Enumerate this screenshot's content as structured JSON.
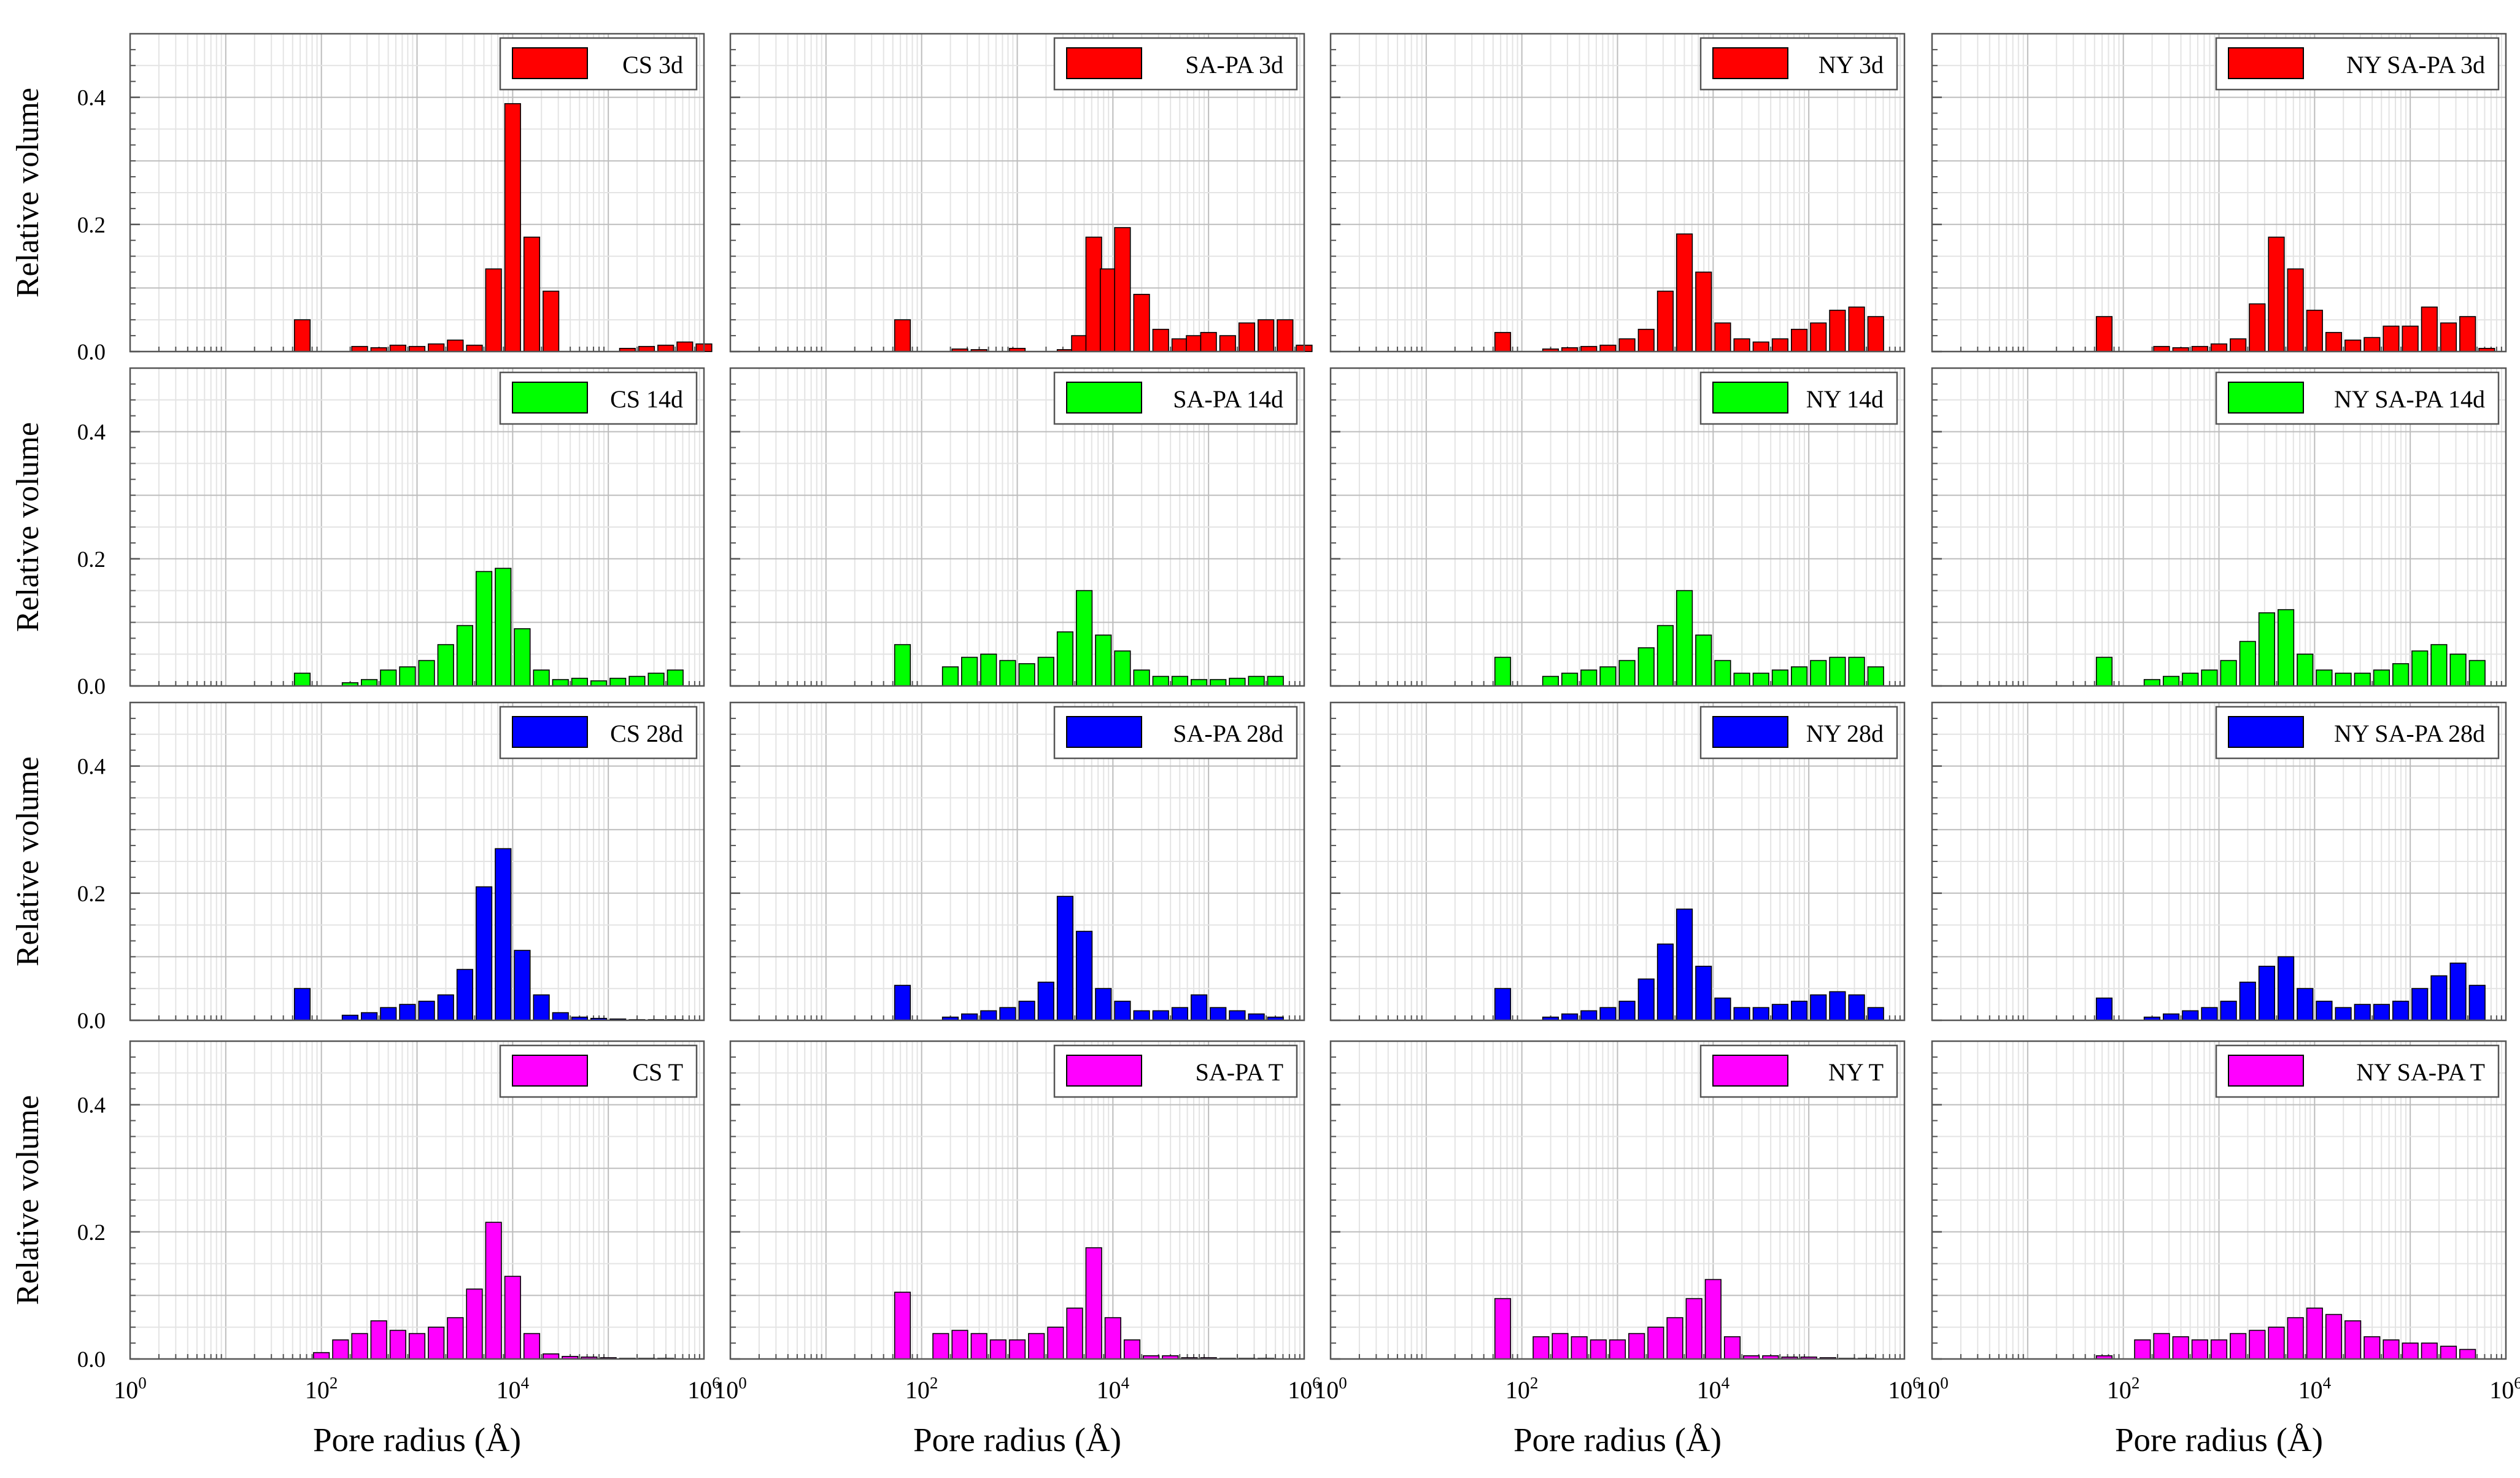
{
  "figure": {
    "ylabel": "Relative volume",
    "xlabel": "Pore radius (Å)",
    "xticks": [
      {
        "base": "10",
        "exp": "0"
      },
      {
        "base": "10",
        "exp": "2"
      },
      {
        "base": "10",
        "exp": "4"
      },
      {
        "base": "10",
        "exp": "6"
      }
    ],
    "yticks": [
      "0.0",
      "0.2",
      "0.4"
    ],
    "colors": {
      "3d": "#ff0000",
      "14d": "#00ff00",
      "28d": "#0000ff",
      "T": "#ff00ff"
    }
  },
  "chart_data": [
    {
      "type": "bar",
      "legend": "CS 3d",
      "color": "#ff0000",
      "xscale": "log",
      "xlim": [
        1,
        1000000
      ],
      "ylim": [
        0,
        0.5
      ],
      "log10_x": [
        1.8,
        2.4,
        2.6,
        2.8,
        3.0,
        3.2,
        3.4,
        3.6,
        3.8,
        4.0,
        4.2,
        4.4,
        5.2,
        5.4,
        5.6,
        5.8,
        6.0
      ],
      "values": [
        0.05,
        0.008,
        0.006,
        0.01,
        0.008,
        0.012,
        0.018,
        0.01,
        0.13,
        0.39,
        0.18,
        0.095,
        0.005,
        0.008,
        0.01,
        0.015,
        0.012
      ]
    },
    {
      "type": "bar",
      "legend": "SA-PA 3d",
      "color": "#ff0000",
      "xscale": "log",
      "xlim": [
        1,
        1000000
      ],
      "ylim": [
        0,
        0.5
      ],
      "log10_x": [
        1.8,
        2.4,
        2.6,
        3.0,
        3.5,
        3.65,
        3.8,
        3.95,
        4.1,
        4.3,
        4.5,
        4.7,
        4.85,
        5.0,
        5.2,
        5.4,
        5.6,
        5.8,
        6.0
      ],
      "values": [
        0.05,
        0.004,
        0.003,
        0.005,
        0.003,
        0.025,
        0.18,
        0.13,
        0.195,
        0.09,
        0.035,
        0.02,
        0.025,
        0.03,
        0.025,
        0.045,
        0.05,
        0.05,
        0.01
      ]
    },
    {
      "type": "bar",
      "legend": "NY 3d",
      "color": "#ff0000",
      "xscale": "log",
      "xlim": [
        1,
        1000000
      ],
      "ylim": [
        0,
        0.5
      ],
      "log10_x": [
        1.8,
        2.3,
        2.5,
        2.7,
        2.9,
        3.1,
        3.3,
        3.5,
        3.7,
        3.9,
        4.1,
        4.3,
        4.5,
        4.7,
        4.9,
        5.1,
        5.3,
        5.5,
        5.7
      ],
      "values": [
        0.03,
        0.004,
        0.006,
        0.008,
        0.01,
        0.02,
        0.035,
        0.095,
        0.185,
        0.125,
        0.045,
        0.02,
        0.015,
        0.02,
        0.035,
        0.045,
        0.065,
        0.07,
        0.055
      ]
    },
    {
      "type": "bar",
      "legend": "NY SA-PA 3d",
      "color": "#ff0000",
      "xscale": "log",
      "xlim": [
        1,
        1000000
      ],
      "ylim": [
        0,
        0.5
      ],
      "log10_x": [
        1.8,
        2.4,
        2.6,
        2.8,
        3.0,
        3.2,
        3.4,
        3.6,
        3.8,
        4.0,
        4.2,
        4.4,
        4.6,
        4.8,
        5.0,
        5.2,
        5.4,
        5.6,
        5.8
      ],
      "values": [
        0.055,
        0.008,
        0.006,
        0.008,
        0.012,
        0.02,
        0.075,
        0.18,
        0.13,
        0.065,
        0.03,
        0.018,
        0.022,
        0.04,
        0.04,
        0.07,
        0.045,
        0.055,
        0.005
      ]
    },
    {
      "type": "bar",
      "legend": "CS 14d",
      "color": "#00ff00",
      "xscale": "log",
      "xlim": [
        1,
        1000000
      ],
      "ylim": [
        0,
        0.5
      ],
      "log10_x": [
        1.8,
        2.3,
        2.5,
        2.7,
        2.9,
        3.1,
        3.3,
        3.5,
        3.7,
        3.9,
        4.1,
        4.3,
        4.5,
        4.7,
        4.9,
        5.1,
        5.3,
        5.5,
        5.7
      ],
      "values": [
        0.02,
        0.005,
        0.01,
        0.025,
        0.03,
        0.04,
        0.065,
        0.095,
        0.18,
        0.185,
        0.09,
        0.025,
        0.01,
        0.012,
        0.008,
        0.012,
        0.015,
        0.02,
        0.025
      ]
    },
    {
      "type": "bar",
      "legend": "SA-PA 14d",
      "color": "#00ff00",
      "xscale": "log",
      "xlim": [
        1,
        1000000
      ],
      "ylim": [
        0,
        0.5
      ],
      "log10_x": [
        1.8,
        2.3,
        2.5,
        2.7,
        2.9,
        3.1,
        3.3,
        3.5,
        3.7,
        3.9,
        4.1,
        4.3,
        4.5,
        4.7,
        4.9,
        5.1,
        5.3,
        5.5,
        5.7
      ],
      "values": [
        0.065,
        0.03,
        0.045,
        0.05,
        0.04,
        0.035,
        0.045,
        0.085,
        0.15,
        0.08,
        0.055,
        0.025,
        0.015,
        0.015,
        0.01,
        0.01,
        0.012,
        0.015,
        0.015
      ]
    },
    {
      "type": "bar",
      "legend": "NY 14d",
      "color": "#00ff00",
      "xscale": "log",
      "xlim": [
        1,
        1000000
      ],
      "ylim": [
        0,
        0.5
      ],
      "log10_x": [
        1.8,
        2.3,
        2.5,
        2.7,
        2.9,
        3.1,
        3.3,
        3.5,
        3.7,
        3.9,
        4.1,
        4.3,
        4.5,
        4.7,
        4.9,
        5.1,
        5.3,
        5.5,
        5.7
      ],
      "values": [
        0.045,
        0.015,
        0.02,
        0.025,
        0.03,
        0.04,
        0.06,
        0.095,
        0.15,
        0.08,
        0.04,
        0.02,
        0.02,
        0.025,
        0.03,
        0.04,
        0.045,
        0.045,
        0.03
      ]
    },
    {
      "type": "bar",
      "legend": "NY SA-PA 14d",
      "color": "#00ff00",
      "xscale": "log",
      "xlim": [
        1,
        1000000
      ],
      "ylim": [
        0,
        0.5
      ],
      "log10_x": [
        1.8,
        2.3,
        2.5,
        2.7,
        2.9,
        3.1,
        3.3,
        3.5,
        3.7,
        3.9,
        4.1,
        4.3,
        4.5,
        4.7,
        4.9,
        5.1,
        5.3,
        5.5,
        5.7
      ],
      "values": [
        0.045,
        0.01,
        0.015,
        0.02,
        0.025,
        0.04,
        0.07,
        0.115,
        0.12,
        0.05,
        0.025,
        0.02,
        0.02,
        0.025,
        0.035,
        0.055,
        0.065,
        0.05,
        0.04
      ]
    },
    {
      "type": "bar",
      "legend": "CS 28d",
      "color": "#0000ff",
      "xscale": "log",
      "xlim": [
        1,
        1000000
      ],
      "ylim": [
        0,
        0.5
      ],
      "log10_x": [
        1.8,
        2.3,
        2.5,
        2.7,
        2.9,
        3.1,
        3.3,
        3.5,
        3.7,
        3.9,
        4.1,
        4.3,
        4.5,
        4.7,
        4.9,
        5.1,
        5.3,
        5.5,
        5.7
      ],
      "values": [
        0.05,
        0.008,
        0.012,
        0.02,
        0.025,
        0.03,
        0.04,
        0.08,
        0.21,
        0.27,
        0.11,
        0.04,
        0.012,
        0.005,
        0.003,
        0.002,
        0.001,
        0.001,
        0.001
      ]
    },
    {
      "type": "bar",
      "legend": "SA-PA 28d",
      "color": "#0000ff",
      "xscale": "log",
      "xlim": [
        1,
        1000000
      ],
      "ylim": [
        0,
        0.5
      ],
      "log10_x": [
        1.8,
        2.3,
        2.5,
        2.7,
        2.9,
        3.1,
        3.3,
        3.5,
        3.7,
        3.9,
        4.1,
        4.3,
        4.5,
        4.7,
        4.9,
        5.1,
        5.3,
        5.5,
        5.7
      ],
      "values": [
        0.055,
        0.005,
        0.01,
        0.015,
        0.02,
        0.03,
        0.06,
        0.195,
        0.14,
        0.05,
        0.03,
        0.015,
        0.015,
        0.02,
        0.04,
        0.02,
        0.015,
        0.01,
        0.005
      ]
    },
    {
      "type": "bar",
      "legend": "NY 28d",
      "color": "#0000ff",
      "xscale": "log",
      "xlim": [
        1,
        1000000
      ],
      "ylim": [
        0,
        0.5
      ],
      "log10_x": [
        1.8,
        2.3,
        2.5,
        2.7,
        2.9,
        3.1,
        3.3,
        3.5,
        3.7,
        3.9,
        4.1,
        4.3,
        4.5,
        4.7,
        4.9,
        5.1,
        5.3,
        5.5,
        5.7
      ],
      "values": [
        0.05,
        0.005,
        0.01,
        0.015,
        0.02,
        0.03,
        0.065,
        0.12,
        0.175,
        0.085,
        0.035,
        0.02,
        0.02,
        0.025,
        0.03,
        0.04,
        0.045,
        0.04,
        0.02
      ]
    },
    {
      "type": "bar",
      "legend": "NY SA-PA 28d",
      "color": "#0000ff",
      "xscale": "log",
      "xlim": [
        1,
        1000000
      ],
      "ylim": [
        0,
        0.5
      ],
      "log10_x": [
        1.8,
        2.3,
        2.5,
        2.7,
        2.9,
        3.1,
        3.3,
        3.5,
        3.7,
        3.9,
        4.1,
        4.3,
        4.5,
        4.7,
        4.9,
        5.1,
        5.3,
        5.5,
        5.7
      ],
      "values": [
        0.035,
        0.005,
        0.01,
        0.015,
        0.02,
        0.03,
        0.06,
        0.085,
        0.1,
        0.05,
        0.03,
        0.02,
        0.025,
        0.025,
        0.03,
        0.05,
        0.07,
        0.09,
        0.055
      ]
    },
    {
      "type": "bar",
      "legend": "CS T",
      "color": "#ff00ff",
      "xscale": "log",
      "xlim": [
        1,
        1000000
      ],
      "ylim": [
        0,
        0.5
      ],
      "log10_x": [
        2.0,
        2.2,
        2.4,
        2.6,
        2.8,
        3.0,
        3.2,
        3.4,
        3.6,
        3.8,
        4.0,
        4.2,
        4.4,
        4.6,
        4.8,
        5.0,
        5.2,
        5.4,
        5.6
      ],
      "values": [
        0.01,
        0.03,
        0.04,
        0.06,
        0.045,
        0.04,
        0.05,
        0.065,
        0.11,
        0.215,
        0.13,
        0.04,
        0.008,
        0.004,
        0.003,
        0.002,
        0.001,
        0.001,
        0.001
      ]
    },
    {
      "type": "bar",
      "legend": "SA-PA T",
      "color": "#ff00ff",
      "xscale": "log",
      "xlim": [
        1,
        1000000
      ],
      "ylim": [
        0,
        0.5
      ],
      "log10_x": [
        1.8,
        2.2,
        2.4,
        2.6,
        2.8,
        3.0,
        3.2,
        3.4,
        3.6,
        3.8,
        4.0,
        4.2,
        4.4,
        4.6,
        4.8,
        5.0,
        5.2,
        5.4,
        5.6
      ],
      "values": [
        0.105,
        0.04,
        0.045,
        0.04,
        0.03,
        0.03,
        0.04,
        0.05,
        0.08,
        0.175,
        0.065,
        0.03,
        0.005,
        0.005,
        0.002,
        0.002,
        0.001,
        0.001,
        0.001
      ]
    },
    {
      "type": "bar",
      "legend": "NY T",
      "color": "#ff00ff",
      "xscale": "log",
      "xlim": [
        1,
        1000000
      ],
      "ylim": [
        0,
        0.5
      ],
      "log10_x": [
        1.8,
        2.2,
        2.4,
        2.6,
        2.8,
        3.0,
        3.2,
        3.4,
        3.6,
        3.8,
        4.0,
        4.2,
        4.4,
        4.6,
        4.8,
        5.0,
        5.2,
        5.4,
        5.6
      ],
      "values": [
        0.095,
        0.035,
        0.04,
        0.035,
        0.03,
        0.03,
        0.04,
        0.05,
        0.065,
        0.095,
        0.125,
        0.035,
        0.005,
        0.005,
        0.003,
        0.003,
        0.002,
        0.001,
        0.001
      ]
    },
    {
      "type": "bar",
      "legend": "NY SA-PA T",
      "color": "#ff00ff",
      "xscale": "log",
      "xlim": [
        1,
        1000000
      ],
      "ylim": [
        0,
        0.5
      ],
      "log10_x": [
        1.8,
        2.2,
        2.4,
        2.6,
        2.8,
        3.0,
        3.2,
        3.4,
        3.6,
        3.8,
        4.0,
        4.2,
        4.4,
        4.6,
        4.8,
        5.0,
        5.2,
        5.4,
        5.6
      ],
      "values": [
        0.005,
        0.03,
        0.04,
        0.035,
        0.03,
        0.03,
        0.04,
        0.045,
        0.05,
        0.065,
        0.08,
        0.07,
        0.06,
        0.035,
        0.03,
        0.025,
        0.025,
        0.02,
        0.015
      ]
    }
  ]
}
